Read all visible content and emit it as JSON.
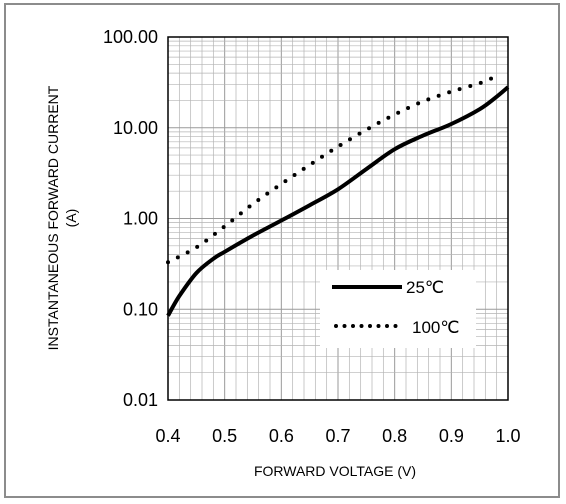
{
  "chart_data": {
    "type": "line",
    "title": "",
    "xlabel": "FORWARD VOLTAGE (V)",
    "ylabel": "INSTANTANEOUS FORWARD CURRENT",
    "ylabel_unit": "(A)",
    "xlim": [
      0.4,
      1.0
    ],
    "ylim": [
      0.01,
      100
    ],
    "yscale": "log",
    "grid": true,
    "legend": "lower-right",
    "x_ticks": [
      "0.4",
      "0.5",
      "0.6",
      "0.7",
      "0.8",
      "0.9",
      "1.0"
    ],
    "y_ticks": [
      "0.01",
      "0.10",
      "1.00",
      "10.00",
      "100.00"
    ],
    "series": [
      {
        "name": "25℃",
        "style": "solid",
        "x": [
          0.4,
          0.42,
          0.45,
          0.48,
          0.5,
          0.55,
          0.6,
          0.65,
          0.7,
          0.75,
          0.8,
          0.85,
          0.9,
          0.95,
          0.98,
          1.0
        ],
        "y": [
          0.085,
          0.14,
          0.25,
          0.36,
          0.43,
          0.65,
          0.95,
          1.4,
          2.1,
          3.5,
          5.8,
          8.2,
          11.0,
          16.0,
          22.0,
          28.0
        ]
      },
      {
        "name": "100℃",
        "style": "dotted",
        "x": [
          0.4,
          0.45,
          0.5,
          0.55,
          0.6,
          0.65,
          0.7,
          0.75,
          0.8,
          0.85,
          0.9,
          0.95,
          0.98
        ],
        "y": [
          0.33,
          0.48,
          0.82,
          1.45,
          2.4,
          3.9,
          6.2,
          9.5,
          14.0,
          19.5,
          25.0,
          31.0,
          37.0
        ]
      }
    ]
  },
  "colors": {
    "line": "#000000",
    "grid": "#b4b4b4",
    "axis": "#000000",
    "frame": "#8c8c8c"
  }
}
